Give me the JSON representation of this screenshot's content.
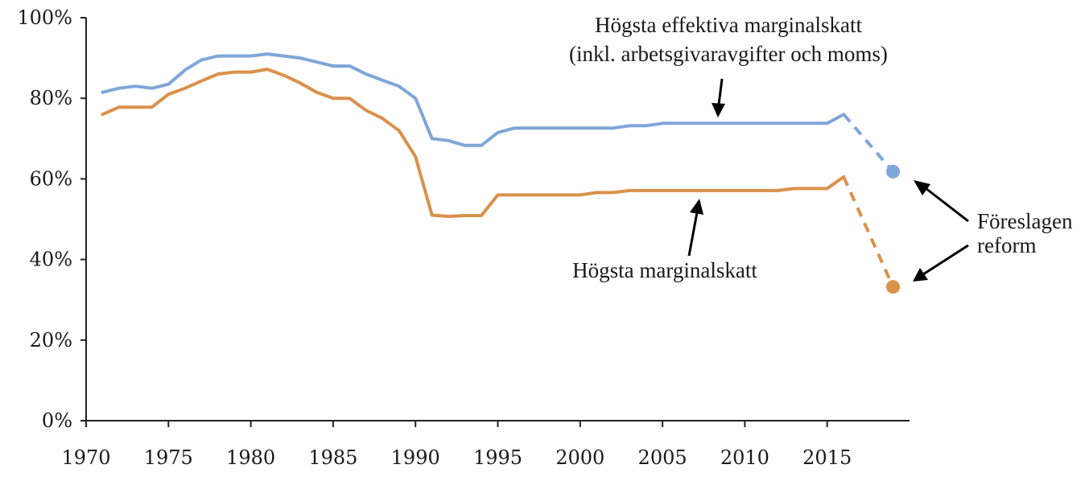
{
  "chart_data": {
    "type": "line",
    "title": "",
    "xlabel": "",
    "ylabel": "",
    "xlim": [
      1970,
      2020
    ],
    "ylim": [
      0,
      100
    ],
    "x_ticks": [
      "1970",
      "1975",
      "1980",
      "1985",
      "1990",
      "1995",
      "2000",
      "2005",
      "2010",
      "2015"
    ],
    "y_ticks": [
      "0%",
      "20%",
      "40%",
      "60%",
      "80%",
      "100%"
    ],
    "grid": false,
    "series": [
      {
        "key": "effective",
        "color": "#7ea6d8",
        "x": [
          1971,
          1972,
          1973,
          1974,
          1975,
          1976,
          1977,
          1978,
          1979,
          1980,
          1981,
          1982,
          1983,
          1984,
          1985,
          1986,
          1987,
          1988,
          1989,
          1990,
          1991,
          1992,
          1993,
          1994,
          1995,
          1996,
          1997,
          1998,
          1999,
          2000,
          2001,
          2002,
          2003,
          2004,
          2005,
          2006,
          2007,
          2008,
          2009,
          2010,
          2011,
          2012,
          2013,
          2014,
          2015,
          2016
        ],
        "values": [
          81.5,
          82.5,
          83,
          82.5,
          83.5,
          87,
          89.5,
          90.5,
          90.5,
          90.5,
          91,
          90.5,
          90,
          89,
          88,
          88,
          86,
          84.5,
          83,
          80,
          70,
          69.5,
          68.3,
          68.3,
          71.5,
          72.6,
          72.6,
          72.6,
          72.6,
          72.6,
          72.6,
          72.6,
          73.2,
          73.2,
          73.8,
          73.8,
          73.8,
          73.8,
          73.8,
          73.8,
          73.8,
          73.8,
          73.8,
          73.8,
          73.8,
          76
        ],
        "proposal": {
          "x": [
            2016,
            2019
          ],
          "values": [
            76,
            61.8
          ]
        }
      },
      {
        "key": "top",
        "color": "#d9914a",
        "x": [
          1971,
          1972,
          1973,
          1974,
          1975,
          1976,
          1977,
          1978,
          1979,
          1980,
          1981,
          1982,
          1983,
          1984,
          1985,
          1986,
          1987,
          1988,
          1989,
          1990,
          1991,
          1992,
          1993,
          1994,
          1995,
          1996,
          1997,
          1998,
          1999,
          2000,
          2001,
          2002,
          2003,
          2004,
          2005,
          2006,
          2007,
          2008,
          2009,
          2010,
          2011,
          2012,
          2013,
          2014,
          2015,
          2016
        ],
        "values": [
          76,
          77.8,
          77.8,
          77.8,
          81,
          82.5,
          84.3,
          86,
          86.5,
          86.5,
          87.2,
          85.7,
          83.8,
          81.5,
          80,
          80,
          77,
          75,
          72,
          65.5,
          51,
          50.7,
          50.9,
          50.9,
          56,
          56,
          56,
          56,
          56,
          56,
          56.6,
          56.6,
          57.1,
          57.1,
          57.1,
          57.1,
          57.1,
          57.1,
          57.1,
          57.1,
          57.1,
          57.1,
          57.6,
          57.6,
          57.6,
          60.5
        ],
        "proposal": {
          "x": [
            2016,
            2019
          ],
          "values": [
            60.5,
            33.2
          ]
        }
      }
    ],
    "annotations": {
      "effective_line1": "Högsta effektiva marginalskatt",
      "effective_line2": "(inkl. arbetsgivaravgifter och moms)",
      "top_label": "Högsta marginalskatt",
      "proposal_line1": "Föreslagen",
      "proposal_line2": "reform"
    }
  }
}
